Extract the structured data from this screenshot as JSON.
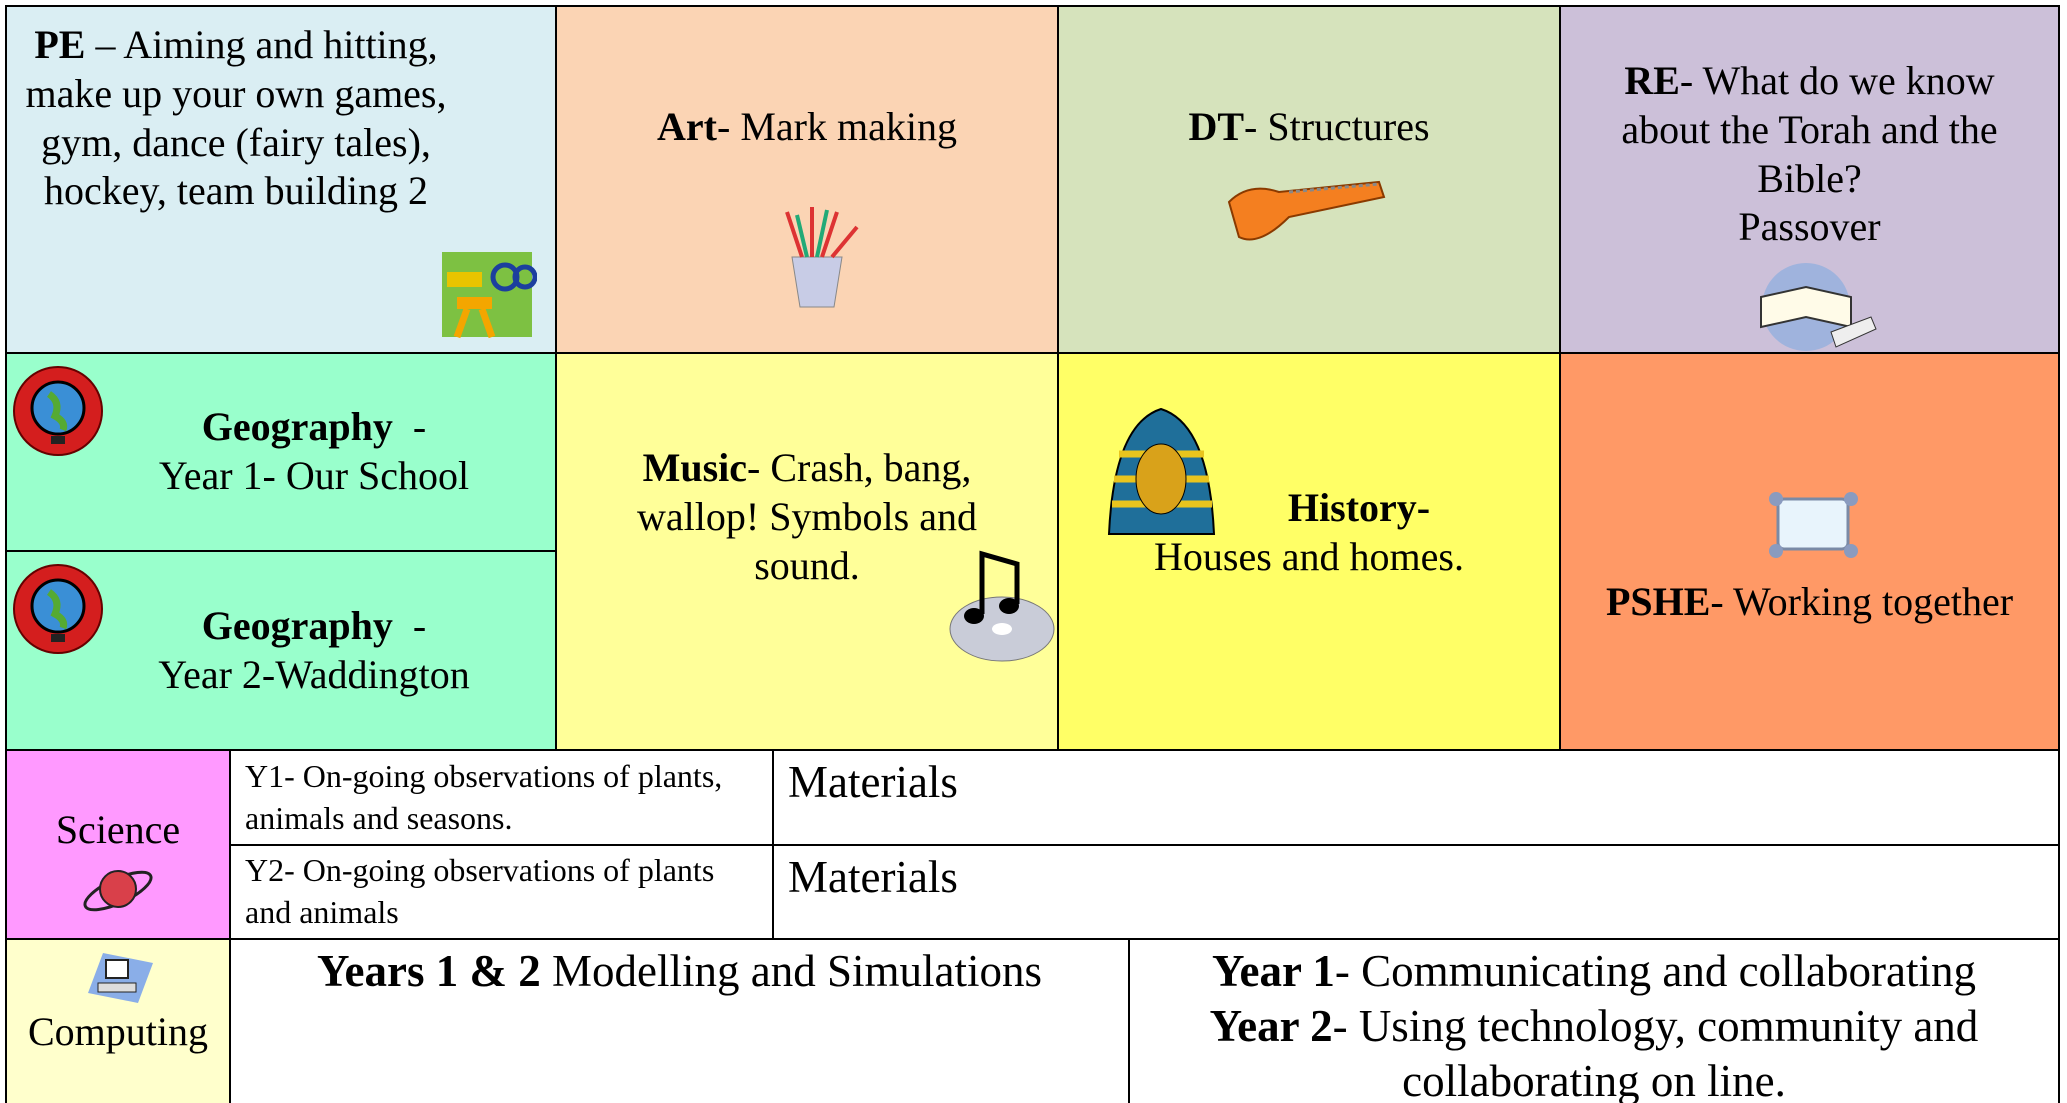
{
  "cells": {
    "pe": {
      "subject": "PE",
      "text": " – Aiming and hitting, make up your own games, gym, dance (fairy tales), hockey, team building 2"
    },
    "art": {
      "subject": "Art",
      "text": "- Mark making"
    },
    "dt": {
      "subject": "DT",
      "text": "- Structures"
    },
    "re": {
      "subject": "RE",
      "text": "- What do we know about the Torah and the Bible?",
      "extra": "Passover"
    },
    "geography_y1": {
      "subject": "Geography",
      "dash": "-",
      "text": "Year 1- Our School"
    },
    "geography_y2": {
      "subject": "Geography",
      "dash": "-",
      "text": "Year 2-Waddington"
    },
    "music": {
      "subject": "Music",
      "text": "- Crash, bang, wallop! Symbols and sound."
    },
    "history": {
      "subject": "History-",
      "text": "Houses and homes."
    },
    "pshe": {
      "subject": "PSHE",
      "text": "- Working together"
    }
  },
  "science": {
    "label": "Science",
    "rows": [
      {
        "topic": "Y1- On-going observations of plants, animals and seasons.",
        "unit": "Materials"
      },
      {
        "topic": "Y2- On-going observations of plants and animals",
        "unit": "Materials"
      }
    ]
  },
  "computing": {
    "label": "Computing",
    "left": {
      "bold": "Years 1 & 2",
      "text": " Modelling and Simulations"
    },
    "right": [
      {
        "bold": "Year 1",
        "text": "- Communicating and collaborating"
      },
      {
        "bold": "Year 2",
        "text": "- Using technology, community and collaborating on line."
      }
    ]
  }
}
